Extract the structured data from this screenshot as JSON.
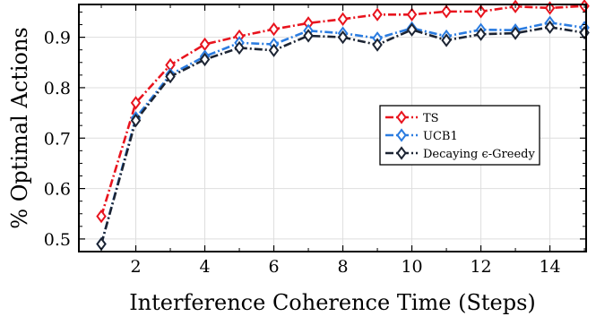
{
  "chart_data": {
    "type": "line",
    "xlabel": "Interference Coherence Time (Steps)",
    "ylabel": "% Optimal Actions",
    "xlim": [
      0.35,
      15.05
    ],
    "ylim": [
      0.475,
      0.965
    ],
    "xticks": [
      2,
      4,
      6,
      8,
      10,
      12,
      14
    ],
    "xtick_labels": [
      "2",
      "4",
      "6",
      "8",
      "10",
      "12",
      "14"
    ],
    "yticks": [
      0.5,
      0.6,
      0.7,
      0.8,
      0.9
    ],
    "ytick_labels": [
      "0.5",
      "0.6",
      "0.7",
      "0.8",
      "0.9"
    ],
    "grid": true,
    "legend_position": "center-right",
    "x": [
      1,
      2,
      3,
      4,
      5,
      6,
      7,
      8,
      9,
      10,
      11,
      12,
      13,
      14,
      15
    ],
    "series": [
      {
        "name": "TS",
        "color": "#e8141e",
        "line_style": "dash-dot",
        "marker": "diamond",
        "values": [
          0.545,
          0.77,
          0.845,
          0.886,
          0.902,
          0.916,
          0.928,
          0.936,
          0.945,
          0.945,
          0.951,
          0.951,
          0.961,
          0.958,
          0.962
        ]
      },
      {
        "name": "UCB1",
        "color": "#2b7ce0",
        "line_style": "dash-dot",
        "marker": "diamond",
        "values": [
          0.49,
          0.74,
          0.826,
          0.862,
          0.889,
          0.886,
          0.913,
          0.908,
          0.898,
          0.918,
          0.902,
          0.915,
          0.914,
          0.929,
          0.919
        ]
      },
      {
        "name": "Decaying ϵ-Greedy",
        "color": "#1c2433",
        "line_style": "dash-dot",
        "marker": "diamond",
        "values": [
          0.49,
          0.735,
          0.822,
          0.856,
          0.879,
          0.874,
          0.903,
          0.9,
          0.885,
          0.915,
          0.894,
          0.906,
          0.908,
          0.92,
          0.909
        ]
      }
    ]
  }
}
